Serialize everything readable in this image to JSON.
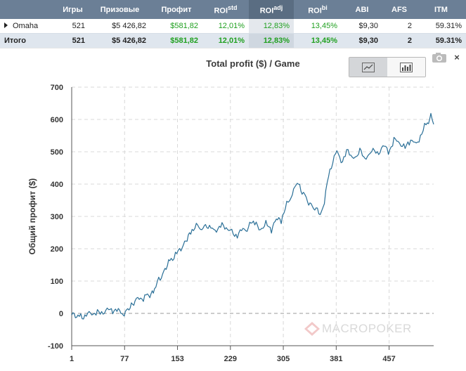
{
  "table": {
    "headers": [
      {
        "key": "games",
        "label": "Игры"
      },
      {
        "key": "prize",
        "label": "Призовые"
      },
      {
        "key": "profit",
        "label": "Профит"
      },
      {
        "key": "roi_std",
        "label": "ROI",
        "sup": "std"
      },
      {
        "key": "roi_adj",
        "label": "ROI",
        "sup": "adj"
      },
      {
        "key": "roi_bi",
        "label": "ROI",
        "sup": "bi"
      },
      {
        "key": "abi",
        "label": "ABI"
      },
      {
        "key": "afs",
        "label": "AFS"
      },
      {
        "key": "itm",
        "label": "ITM"
      }
    ],
    "rows": [
      {
        "name": "Omaha",
        "games": "521",
        "prize": "$5 426,82",
        "profit": "$581,82",
        "roi_std": "12,01%",
        "roi_adj": "12,83%",
        "roi_bi": "13,45%",
        "abi": "$9,30",
        "afs": "2",
        "itm": "59.31%"
      }
    ],
    "total": {
      "name": "Итого",
      "games": "521",
      "prize": "$5 426,82",
      "profit": "$581,82",
      "roi_std": "12,01%",
      "roi_adj": "12,83%",
      "roi_bi": "13,45%",
      "abi": "$9,30",
      "afs": "2",
      "itm": "59.31%"
    }
  },
  "chart_panel": {
    "title": "Total profit ($) / Game",
    "view_buttons": [
      {
        "name": "line-view",
        "icon": "line-chart-icon",
        "active": true
      },
      {
        "name": "bar-view",
        "icon": "bar-chart-icon",
        "active": false
      }
    ],
    "close_label": "×",
    "watermark": "MACROPOKER"
  },
  "chart_data": {
    "type": "line",
    "title": "Total profit ($) / Game",
    "xlabel": "",
    "ylabel": "Общий профит ($)",
    "ylim": [
      -100,
      700
    ],
    "yticks": [
      -100,
      0,
      100,
      200,
      300,
      400,
      500,
      600,
      700
    ],
    "xlim": [
      1,
      521
    ],
    "xticks": [
      1,
      77,
      153,
      229,
      305,
      381,
      457
    ],
    "grid": true,
    "color": "#2a6f97",
    "series": [
      {
        "name": "",
        "points": [
          [
            1,
            -5
          ],
          [
            10,
            -10
          ],
          [
            20,
            -8
          ],
          [
            30,
            2
          ],
          [
            40,
            0
          ],
          [
            50,
            8
          ],
          [
            60,
            12
          ],
          [
            70,
            5
          ],
          [
            75,
            -12
          ],
          [
            78,
            8
          ],
          [
            85,
            25
          ],
          [
            92,
            40
          ],
          [
            100,
            45
          ],
          [
            108,
            55
          ],
          [
            115,
            60
          ],
          [
            120,
            75
          ],
          [
            128,
            110
          ],
          [
            135,
            140
          ],
          [
            142,
            165
          ],
          [
            150,
            180
          ],
          [
            158,
            200
          ],
          [
            165,
            230
          ],
          [
            172,
            255
          ],
          [
            180,
            270
          ],
          [
            188,
            260
          ],
          [
            195,
            275
          ],
          [
            205,
            255
          ],
          [
            215,
            270
          ],
          [
            225,
            265
          ],
          [
            235,
            240
          ],
          [
            245,
            255
          ],
          [
            255,
            265
          ],
          [
            262,
            285
          ],
          [
            270,
            260
          ],
          [
            280,
            275
          ],
          [
            288,
            260
          ],
          [
            295,
            300
          ],
          [
            302,
            290
          ],
          [
            310,
            335
          ],
          [
            318,
            370
          ],
          [
            325,
            410
          ],
          [
            332,
            380
          ],
          [
            338,
            355
          ],
          [
            345,
            340
          ],
          [
            352,
            320
          ],
          [
            358,
            310
          ],
          [
            364,
            340
          ],
          [
            370,
            430
          ],
          [
            376,
            470
          ],
          [
            382,
            500
          ],
          [
            390,
            470
          ],
          [
            398,
            505
          ],
          [
            406,
            480
          ],
          [
            415,
            500
          ],
          [
            424,
            475
          ],
          [
            432,
            510
          ],
          [
            440,
            490
          ],
          [
            448,
            520
          ],
          [
            456,
            500
          ],
          [
            464,
            535
          ],
          [
            472,
            530
          ],
          [
            480,
            510
          ],
          [
            488,
            540
          ],
          [
            496,
            520
          ],
          [
            504,
            560
          ],
          [
            512,
            590
          ],
          [
            517,
            615
          ],
          [
            521,
            585
          ]
        ]
      }
    ]
  }
}
